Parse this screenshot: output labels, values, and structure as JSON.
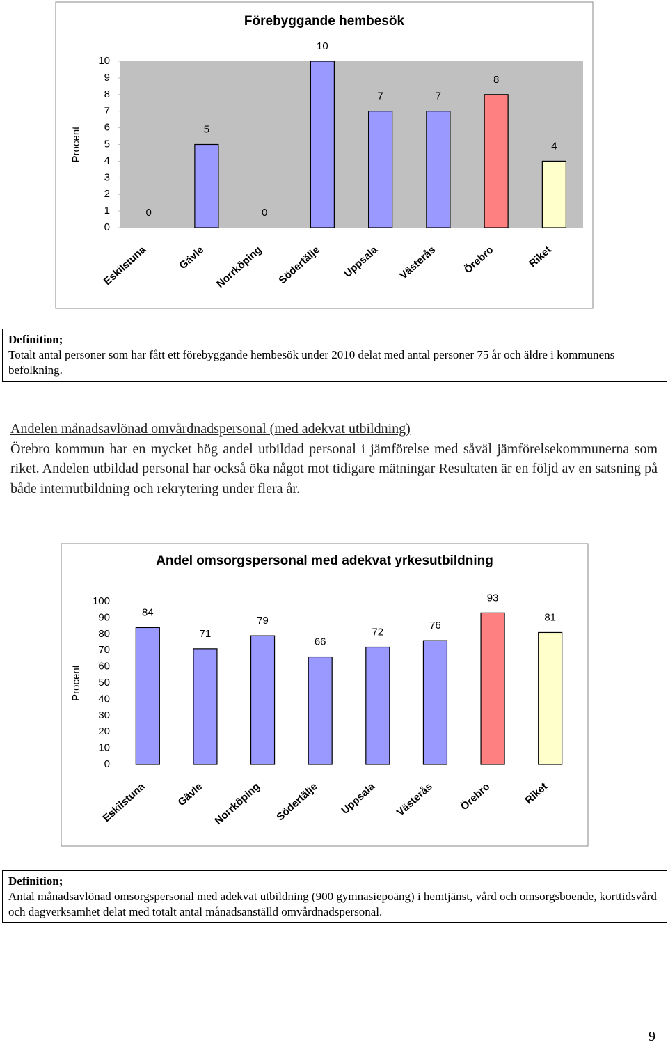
{
  "chart_data": [
    {
      "type": "bar",
      "title": "Förebyggande hembesök",
      "y_label": "Procent",
      "categories": [
        "Eskilstuna",
        "Gävle",
        "Norrköping",
        "Södertälje",
        "Uppsala",
        "Västerås",
        "Örebro",
        "Riket"
      ],
      "values": [
        0,
        5,
        0,
        10,
        7,
        7,
        8,
        4
      ],
      "colors": [
        "#9999ff",
        "#9999ff",
        "#9999ff",
        "#9999ff",
        "#9999ff",
        "#9999ff",
        "#ff8080",
        "#ffffcc"
      ],
      "plot_background": "#c0c0c0",
      "ylim": [
        0,
        10
      ],
      "yticks": [
        0,
        1,
        2,
        3,
        4,
        5,
        6,
        7,
        8,
        9,
        10
      ]
    },
    {
      "type": "bar",
      "title": "Andel omsorgspersonal med adekvat yrkesutbildning",
      "y_label": "Procent",
      "categories": [
        "Eskilstuna",
        "Gävle",
        "Norrköping",
        "Södertälje",
        "Uppsala",
        "Västerås",
        "Örebro",
        "Riket"
      ],
      "values": [
        84,
        71,
        79,
        66,
        72,
        76,
        93,
        81
      ],
      "colors": [
        "#9999ff",
        "#9999ff",
        "#9999ff",
        "#9999ff",
        "#9999ff",
        "#9999ff",
        "#ff8080",
        "#ffffcc"
      ],
      "plot_background": "#ffffff",
      "ylim": [
        0,
        100
      ],
      "yticks": [
        0,
        10,
        20,
        30,
        40,
        50,
        60,
        70,
        80,
        90,
        100
      ]
    }
  ],
  "definitions": [
    {
      "heading": "Definition;",
      "text": "Totalt antal personer som har fått ett förebyggande hembesök under 2010 delat med antal personer 75 år och äldre i kommunens befolkning."
    },
    {
      "heading": "Definition;",
      "text": "Antal månadsavlönad omsorgspersonal med adekvat utbildning (900 gymnasiepoäng) i hemtjänst, vård och omsorgsboende, korttidsvård och dagverksamhet delat med totalt antal månadsanställd omvårdnadspersonal."
    }
  ],
  "section": {
    "heading": "Andelen månadsavlönad omvårdnadspersonal (med adekvat utbildning)",
    "text": "Örebro kommun har en mycket hög andel utbildad personal i jämförelse med såväl jämförelsekommunerna som riket. Andelen utbildad personal har också öka något mot tidigare mätningar Resultaten är en följd av en satsning på både internutbildning och rekrytering under flera år."
  },
  "page_number": 9
}
